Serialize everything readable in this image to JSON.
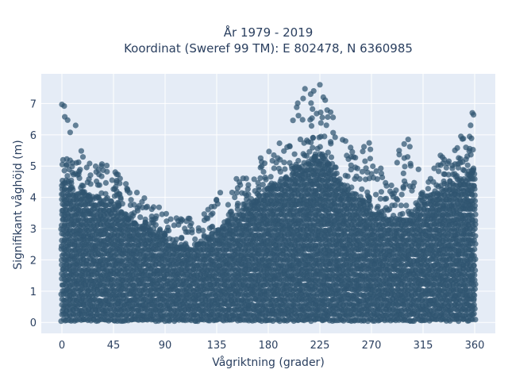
{
  "chart_data": {
    "type": "scatter",
    "title": "År 1979 - 2019",
    "subtitle": "Koordinat (Sweref 99 TM): E 802478, N 6360985",
    "xlabel": "Vågriktning (grader)",
    "ylabel": "Signifikant våghöjd (m)",
    "xlim": [
      -18,
      378
    ],
    "ylim": [
      -0.35,
      7.95
    ],
    "xticks": [
      0,
      45,
      90,
      135,
      180,
      225,
      270,
      315,
      360
    ],
    "yticks": [
      0,
      1,
      2,
      3,
      4,
      5,
      6,
      7
    ],
    "grid": true,
    "marker_color": "#2f5470",
    "background": "#e5ecf6",
    "envelope": {
      "direction_deg": [
        0,
        15,
        30,
        45,
        60,
        75,
        90,
        105,
        120,
        135,
        150,
        165,
        180,
        195,
        210,
        225,
        240,
        255,
        270,
        285,
        300,
        315,
        330,
        345,
        360
      ],
      "dense_upper_height_m": [
        4.5,
        4.1,
        3.9,
        3.7,
        3.2,
        2.9,
        2.6,
        2.3,
        2.5,
        2.8,
        3.4,
        3.7,
        4.2,
        4.6,
        5.0,
        5.4,
        4.7,
        4.1,
        3.6,
        3.4,
        3.4,
        3.8,
        4.2,
        4.6,
        4.8
      ],
      "max_height_m": [
        7.0,
        5.8,
        5.2,
        5.0,
        4.3,
        3.9,
        3.6,
        3.3,
        3.4,
        4.1,
        4.6,
        4.7,
        5.7,
        6.8,
        7.5,
        7.6,
        6.4,
        5.7,
        5.7,
        4.9,
        5.9,
        5.2,
        5.5,
        5.8,
        6.7
      ]
    },
    "notable_points": [
      {
        "x": 0,
        "y": 6.97
      },
      {
        "x": 2,
        "y": 6.92
      },
      {
        "x": 5,
        "y": 6.47
      },
      {
        "x": 12,
        "y": 6.3
      },
      {
        "x": 212,
        "y": 7.47
      },
      {
        "x": 225,
        "y": 7.6
      },
      {
        "x": 228,
        "y": 7.2
      },
      {
        "x": 217,
        "y": 7.3
      },
      {
        "x": 358,
        "y": 6.7
      },
      {
        "x": 359,
        "y": 6.64
      },
      {
        "x": 302,
        "y": 5.85
      },
      {
        "x": 268,
        "y": 5.74
      }
    ]
  }
}
